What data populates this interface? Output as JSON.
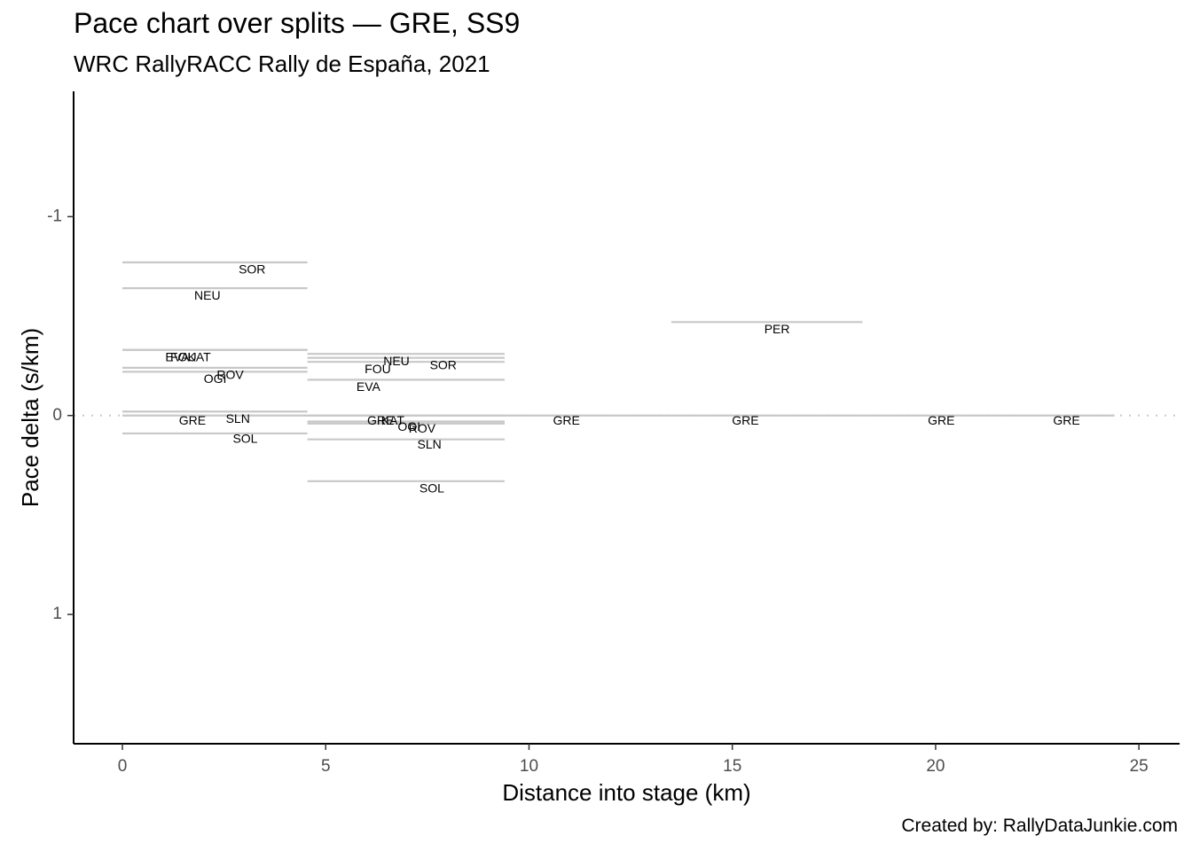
{
  "chart_data": {
    "type": "line",
    "title": "Pace chart over splits — GRE, SS9",
    "subtitle": "WRC RallyRACC Rally de España, 2021",
    "caption": "Created by: RallyDataJunkie.com",
    "xlabel": "Distance into stage (km)",
    "ylabel": "Pace delta (s/km)",
    "xlim": [
      -1.2,
      26.0
    ],
    "ylim": [
      1.65,
      -1.63
    ],
    "y_reversed": true,
    "x_ticks": [
      0,
      5,
      10,
      15,
      20,
      25
    ],
    "x_tick_labels": [
      "0",
      "5",
      "10",
      "15",
      "20",
      "25"
    ],
    "y_ticks": [
      -1,
      0,
      1
    ],
    "y_tick_labels": [
      "-1",
      "0",
      "1"
    ],
    "reference_line": 0,
    "grid": false,
    "line_color": "#c8c8c8",
    "segments": [
      {
        "label": "SOR",
        "x0": 0.0,
        "x1": 4.55,
        "y": -0.77
      },
      {
        "label": "NEU",
        "x0": 0.0,
        "x1": 4.55,
        "y": -0.64
      },
      {
        "label": "EVA",
        "x0": 0.0,
        "x1": 4.55,
        "y": -0.33
      },
      {
        "label": "FOU",
        "x0": 0.0,
        "x1": 4.55,
        "y": -0.33
      },
      {
        "label": "KAT",
        "x0": 0.0,
        "x1": 4.55,
        "y": -0.33
      },
      {
        "label": "ROV",
        "x0": 0.0,
        "x1": 4.55,
        "y": -0.24
      },
      {
        "label": "OGI",
        "x0": 0.0,
        "x1": 4.55,
        "y": -0.22
      },
      {
        "label": "SLN",
        "x0": 0.0,
        "x1": 4.55,
        "y": -0.02
      },
      {
        "label": "GRE",
        "x0": 0.0,
        "x1": 4.55,
        "y": 0.0
      },
      {
        "label": "SOL",
        "x0": 0.0,
        "x1": 4.55,
        "y": 0.09
      },
      {
        "label": "NEU",
        "x0": 4.55,
        "x1": 9.4,
        "y": -0.31
      },
      {
        "label": "SOR",
        "x0": 4.55,
        "x1": 9.4,
        "y": -0.29
      },
      {
        "label": "FOU",
        "x0": 4.55,
        "x1": 9.4,
        "y": -0.27
      },
      {
        "label": "EVA",
        "x0": 4.55,
        "x1": 9.4,
        "y": -0.18
      },
      {
        "label": "GRE",
        "x0": 4.55,
        "x1": 9.4,
        "y": 0.0
      },
      {
        "label": "KAT",
        "x0": 4.55,
        "x1": 9.4,
        "y": 0.0
      },
      {
        "label": "OGI",
        "x0": 4.55,
        "x1": 9.4,
        "y": 0.03
      },
      {
        "label": "ROV",
        "x0": 4.55,
        "x1": 9.4,
        "y": 0.04
      },
      {
        "label": "SLN",
        "x0": 4.55,
        "x1": 9.4,
        "y": 0.12
      },
      {
        "label": "SOL",
        "x0": 4.55,
        "x1": 9.4,
        "y": 0.33
      },
      {
        "label": "GRE",
        "x0": 9.4,
        "x1": 13.5,
        "y": 0.0
      },
      {
        "label": "PER",
        "x0": 13.5,
        "x1": 18.2,
        "y": -0.47
      },
      {
        "label": "GRE",
        "x0": 13.5,
        "x1": 18.2,
        "y": 0.0
      },
      {
        "label": "GRE",
        "x0": 18.2,
        "x1": 21.7,
        "y": 0.0
      },
      {
        "label": "GRE",
        "x0": 21.7,
        "x1": 24.4,
        "y": 0.0
      }
    ],
    "labels": [
      {
        "text": "SOR",
        "x": 3.19,
        "y": -0.73
      },
      {
        "text": "NEU",
        "x": 2.09,
        "y": -0.6
      },
      {
        "text": "EVA",
        "x": 1.35,
        "y": -0.29
      },
      {
        "text": "FOU",
        "x": 1.5,
        "y": -0.29
      },
      {
        "text": "KAT",
        "x": 1.89,
        "y": -0.29
      },
      {
        "text": "ROV",
        "x": 2.65,
        "y": -0.2
      },
      {
        "text": "OGI",
        "x": 2.28,
        "y": -0.18
      },
      {
        "text": "SLN",
        "x": 2.84,
        "y": 0.02
      },
      {
        "text": "GRE",
        "x": 1.72,
        "y": 0.03
      },
      {
        "text": "SOL",
        "x": 3.02,
        "y": 0.12
      },
      {
        "text": "NEU",
        "x": 6.74,
        "y": -0.27
      },
      {
        "text": "SOR",
        "x": 7.89,
        "y": -0.25
      },
      {
        "text": "FOU",
        "x": 6.28,
        "y": -0.23
      },
      {
        "text": "EVA",
        "x": 6.05,
        "y": -0.14
      },
      {
        "text": "GRE",
        "x": 6.35,
        "y": 0.03
      },
      {
        "text": "KAT",
        "x": 6.65,
        "y": 0.03
      },
      {
        "text": "OGI",
        "x": 7.05,
        "y": 0.06
      },
      {
        "text": "ROV",
        "x": 7.37,
        "y": 0.07
      },
      {
        "text": "SLN",
        "x": 7.55,
        "y": 0.15
      },
      {
        "text": "SOL",
        "x": 7.61,
        "y": 0.37
      },
      {
        "text": "GRE",
        "x": 10.92,
        "y": 0.03
      },
      {
        "text": "PER",
        "x": 16.1,
        "y": -0.43
      },
      {
        "text": "GRE",
        "x": 15.32,
        "y": 0.03
      },
      {
        "text": "GRE",
        "x": 20.14,
        "y": 0.03
      },
      {
        "text": "GRE",
        "x": 23.22,
        "y": 0.03
      }
    ]
  }
}
